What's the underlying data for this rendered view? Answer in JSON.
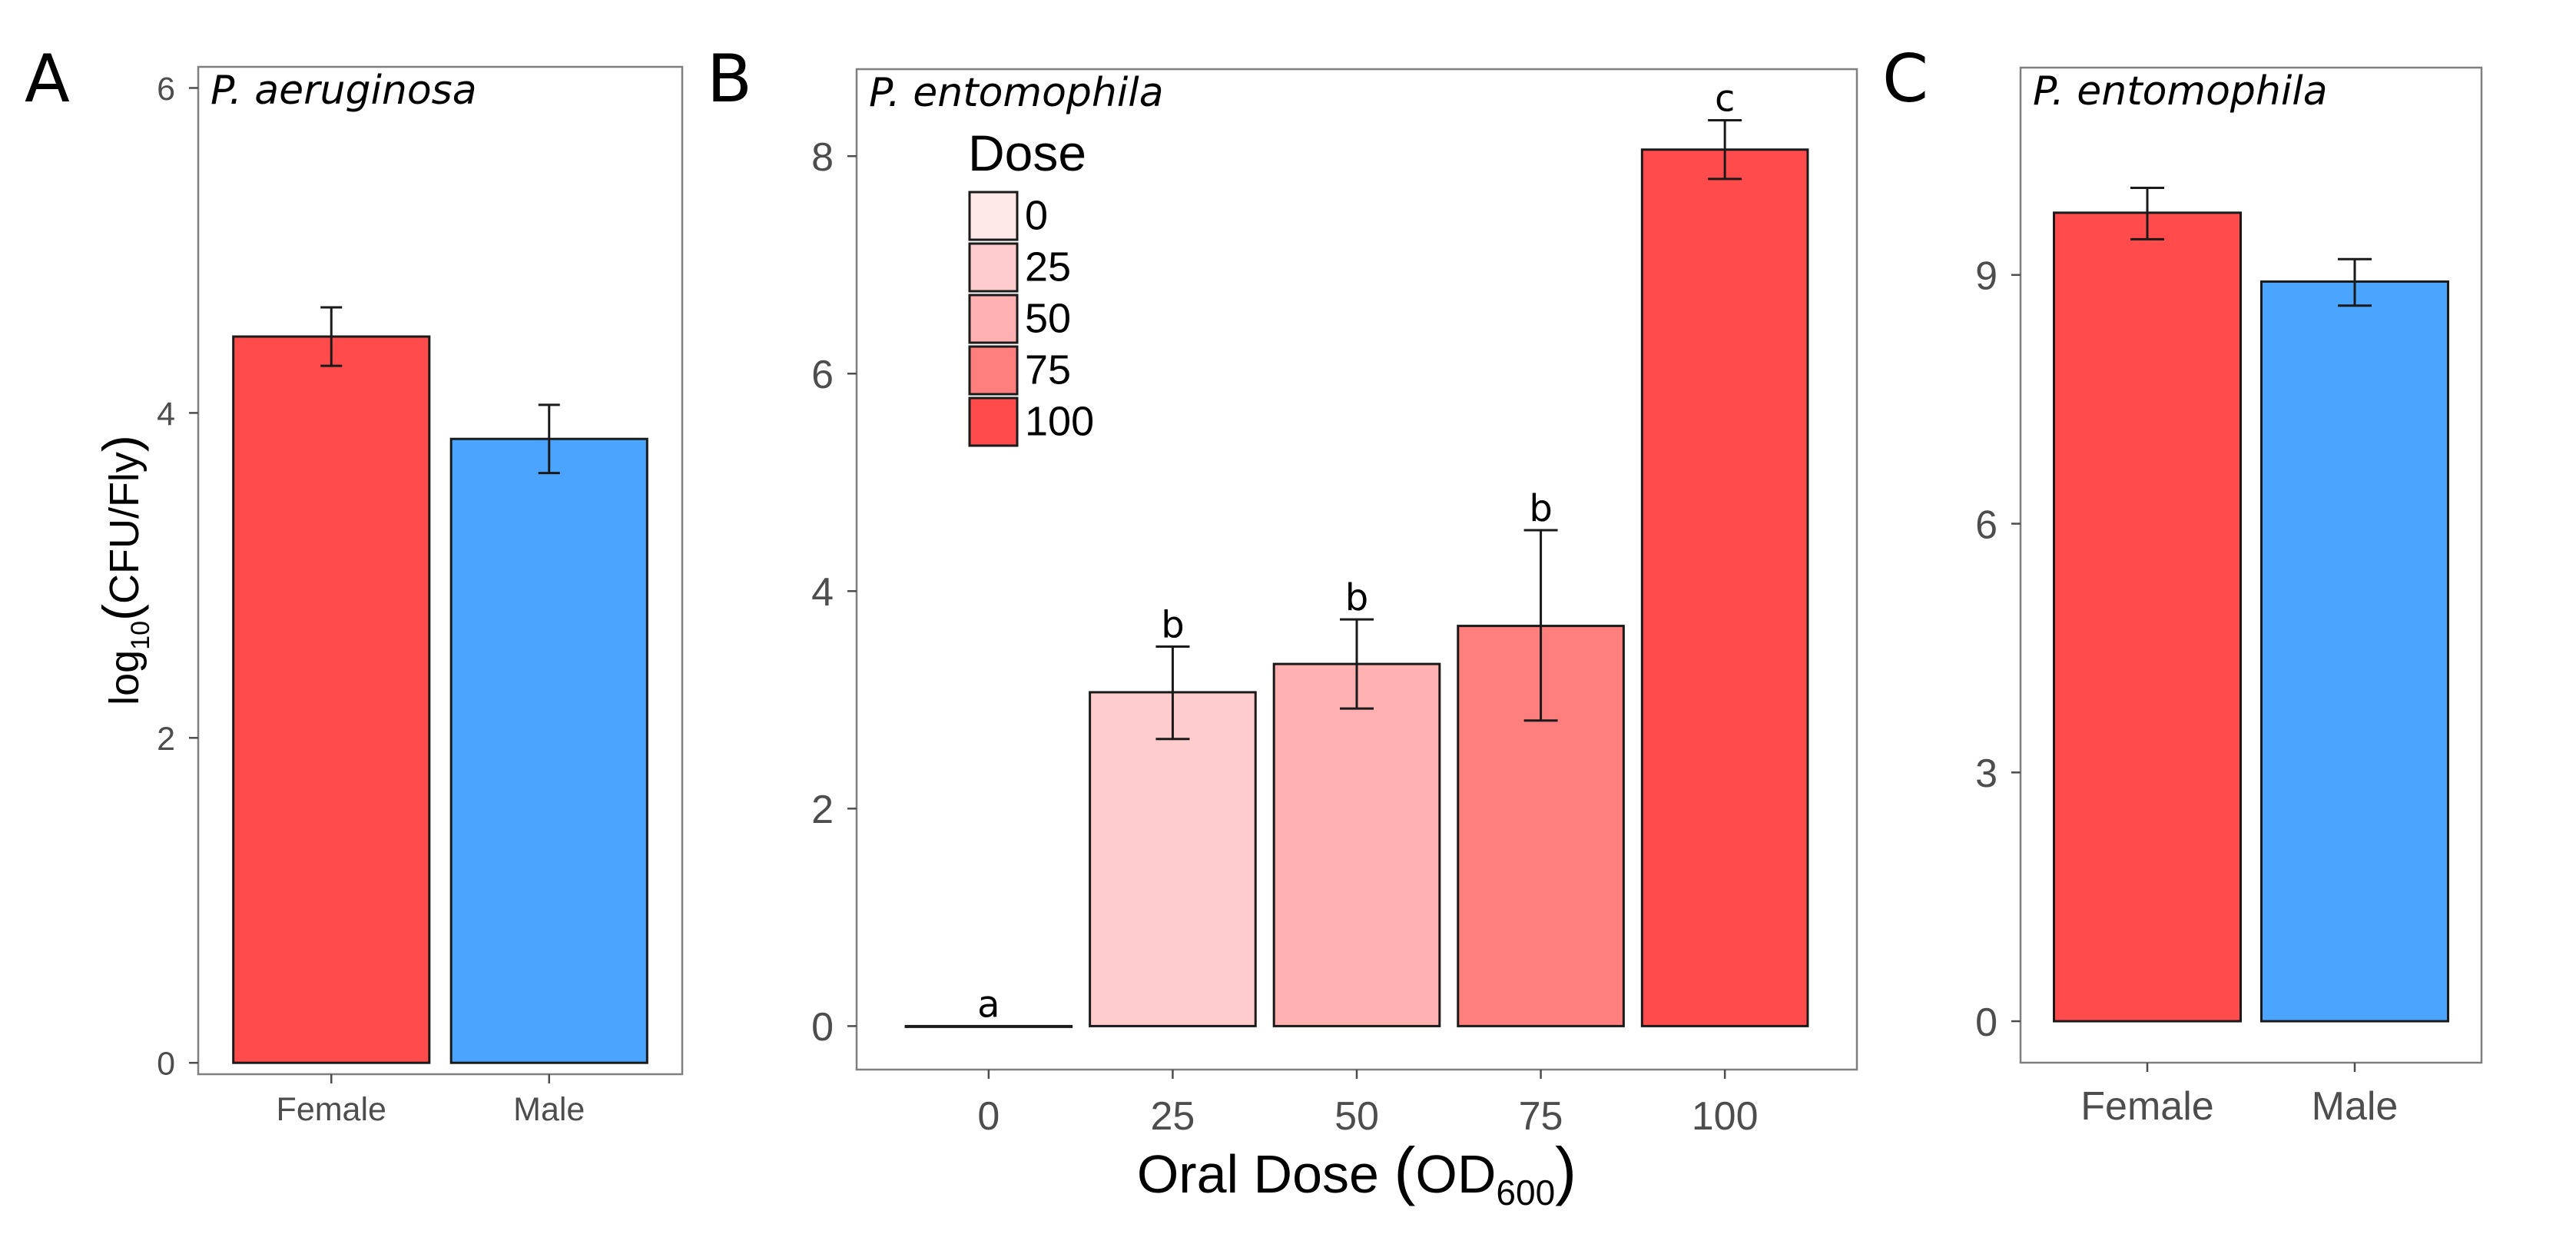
{
  "colors": {
    "female": "#FF4B4B",
    "male": "#4BA5FF",
    "dose_0": "#FFE8E8",
    "dose_25": "#FFCCCE",
    "dose_50": "#FFB1B1",
    "dose_75": "#FF7E7E",
    "dose_100": "#FF4B4B",
    "outline": "#1a1a1a"
  },
  "chart_data": [
    {
      "panel": "A",
      "type": "bar",
      "title": "P. aeruginosa",
      "categories": [
        "Female",
        "Male"
      ],
      "values": [
        4.47,
        3.84
      ],
      "error_low": [
        4.29,
        3.63
      ],
      "error_high": [
        4.65,
        4.05
      ],
      "bar_colors": [
        "#FF4B4B",
        "#4BA5FF"
      ],
      "xlabel": "",
      "ylabel": "log10(CFU/Fly)",
      "ylabel_parts": {
        "prefix": "log",
        "subscript": "10",
        "open": "(",
        "body": "CFU/Fly",
        "close": ")"
      },
      "ylim": [
        -0.07,
        6.13
      ],
      "yticks": [
        0,
        2,
        4,
        6
      ],
      "ytick_labels": [
        "0",
        "2",
        "4",
        "6"
      ]
    },
    {
      "panel": "B",
      "type": "bar",
      "title": "P. entomophila",
      "categories": [
        "0",
        "25",
        "50",
        "75",
        "100"
      ],
      "values": [
        0.0,
        3.07,
        3.33,
        3.68,
        8.06
      ],
      "error_low": [
        0.0,
        2.64,
        2.92,
        2.81,
        7.79
      ],
      "error_high": [
        0.0,
        3.49,
        3.74,
        4.56,
        8.33
      ],
      "significance": [
        "a",
        "b",
        "b",
        "b",
        "c"
      ],
      "bar_colors": [
        "#FFE8E8",
        "#FFCCCE",
        "#FFB1B1",
        "#FF7E7E",
        "#FF4B4B"
      ],
      "xlabel": "Oral Dose (OD600)",
      "xlabel_parts": {
        "text": "Oral Dose",
        "open": "(",
        "body": "OD",
        "subscript": "600",
        "close": ")"
      },
      "ylabel": "",
      "ylim": [
        -0.4,
        8.8
      ],
      "yticks": [
        0,
        2,
        4,
        6,
        8
      ],
      "ytick_labels": [
        "0",
        "2",
        "4",
        "6",
        "8"
      ],
      "legend": {
        "title": "Dose",
        "entries": [
          "0",
          "25",
          "50",
          "75",
          "100"
        ],
        "placement": "top-left"
      }
    },
    {
      "panel": "C",
      "type": "bar",
      "title": "P. entomophila",
      "categories": [
        "Female",
        "Male"
      ],
      "values": [
        9.75,
        8.92
      ],
      "error_low": [
        9.43,
        8.63
      ],
      "error_high": [
        10.05,
        9.19
      ],
      "bar_colors": [
        "#FF4B4B",
        "#4BA5FF"
      ],
      "xlabel": "",
      "ylabel": "",
      "ylim": [
        -0.5,
        11.5
      ],
      "yticks": [
        0,
        3,
        6,
        9
      ],
      "ytick_labels": [
        "0",
        "3",
        "6",
        "9"
      ]
    }
  ]
}
